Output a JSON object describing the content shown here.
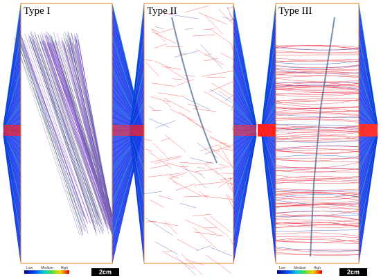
{
  "panels": [
    {
      "label": "Type I"
    },
    {
      "label": "Type II"
    },
    {
      "label": "Type III"
    }
  ],
  "legends": [
    {
      "low": "Low",
      "medium": "Medium",
      "high": "High",
      "scale": "2cm"
    },
    {
      "low": "Low",
      "medium": "Medium",
      "high": "High",
      "scale": "2cm"
    }
  ]
}
